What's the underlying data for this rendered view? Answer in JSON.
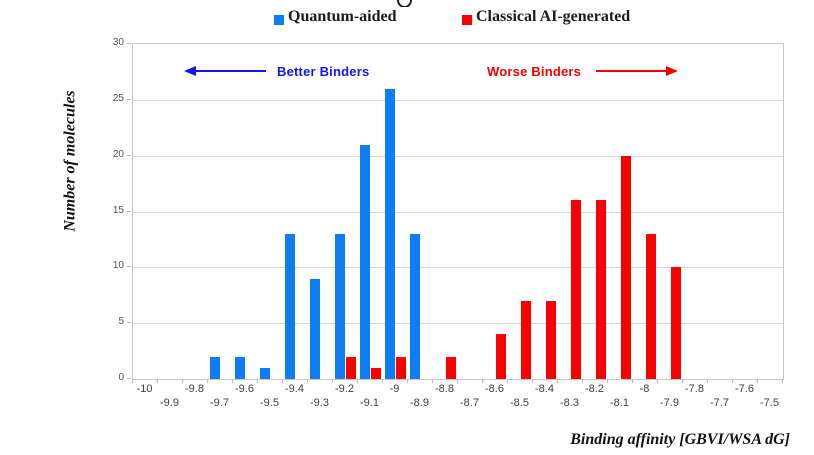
{
  "legend": {
    "items": [
      {
        "label": "Quantum-aided",
        "color": "#0e7df4"
      },
      {
        "label": "Classical AI-generated",
        "color": "#fb0000"
      }
    ]
  },
  "annotations": {
    "better": {
      "label": "Better Binders",
      "color": "#1414e8",
      "direction": "left"
    },
    "worse": {
      "label": "Worse Binders",
      "color": "#f40000",
      "direction": "right"
    }
  },
  "axes": {
    "y_title": "Number of molecules",
    "x_title": "Binding affinity [GBVI/WSA dG]"
  },
  "chart_data": {
    "type": "bar",
    "categories": [
      "-10",
      "-9.9",
      "-9.8",
      "-9.7",
      "-9.6",
      "-9.5",
      "-9.4",
      "-9.3",
      "-9.2",
      "-9.1",
      "-9",
      "-8.9",
      "-8.8",
      "-8.7",
      "-8.6",
      "-8.5",
      "-8.4",
      "-8.3",
      "-8.2",
      "-8.1",
      "-8",
      "-7.9",
      "-7.8",
      "-7.7",
      "-7.6",
      "-7.5"
    ],
    "series": [
      {
        "name": "Quantum-aided",
        "color": "#0e7df4",
        "values": [
          0,
          0,
          0,
          2,
          2,
          1,
          13,
          9,
          13,
          21,
          26,
          13,
          0,
          0,
          0,
          0,
          0,
          0,
          0,
          0,
          0,
          0,
          0,
          0,
          0,
          0
        ]
      },
      {
        "name": "Classical AI-generated",
        "color": "#fb0000",
        "values": [
          0,
          0,
          0,
          0,
          0,
          0,
          0,
          0,
          2,
          1,
          2,
          0,
          2,
          0,
          4,
          7,
          7,
          16,
          16,
          20,
          13,
          10,
          0,
          0,
          0,
          0
        ]
      }
    ],
    "xlabel": "Binding affinity [GBVI/WSA dG]",
    "ylabel": "Number of molecules",
    "ylim": [
      0,
      30
    ],
    "yticks": [
      0,
      5,
      10,
      15,
      20,
      25,
      30
    ],
    "grid": true,
    "legend_position": "top-center",
    "xtick_layout": "staggered-two-rows"
  }
}
